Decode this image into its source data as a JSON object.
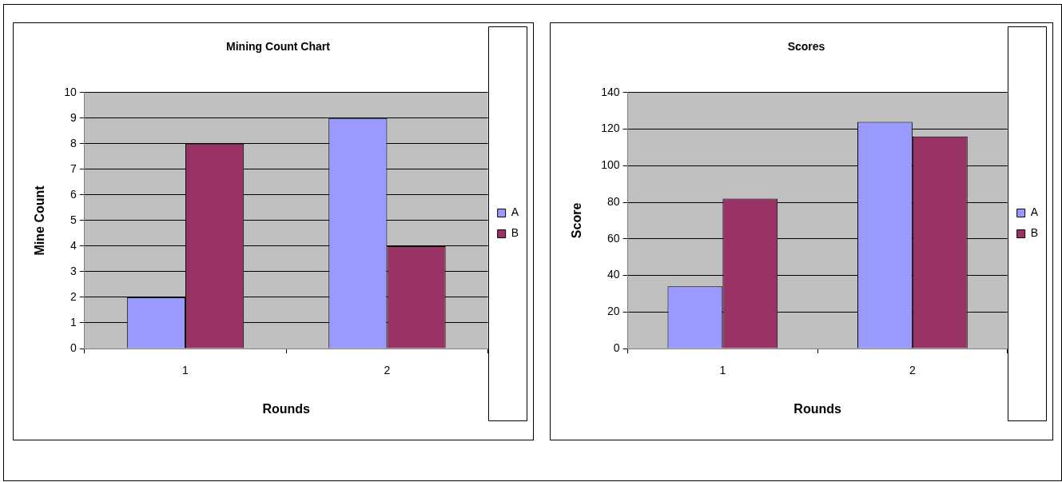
{
  "chart_data": [
    {
      "type": "bar",
      "title": "Mining Count Chart",
      "xlabel": "Rounds",
      "ylabel": "Mine Count",
      "categories": [
        "1",
        "2"
      ],
      "series": [
        {
          "name": "A",
          "color": "#9999ff",
          "values": [
            2,
            9
          ]
        },
        {
          "name": "B",
          "color": "#993366",
          "values": [
            8,
            4
          ]
        }
      ],
      "ylim": [
        0,
        10
      ],
      "yticks": [
        0,
        1,
        2,
        3,
        4,
        5,
        6,
        7,
        8,
        9,
        10
      ],
      "grid": "y",
      "legend": "right"
    },
    {
      "type": "bar",
      "title": "Scores",
      "xlabel": "Rounds",
      "ylabel": "Score",
      "categories": [
        "1",
        "2"
      ],
      "series": [
        {
          "name": "A",
          "color": "#9999ff",
          "values": [
            34,
            124
          ]
        },
        {
          "name": "B",
          "color": "#993366",
          "values": [
            82,
            116
          ]
        }
      ],
      "ylim": [
        0,
        140
      ],
      "yticks": [
        0,
        20,
        40,
        60,
        80,
        100,
        120,
        140
      ],
      "grid": "y",
      "legend": "right"
    }
  ]
}
